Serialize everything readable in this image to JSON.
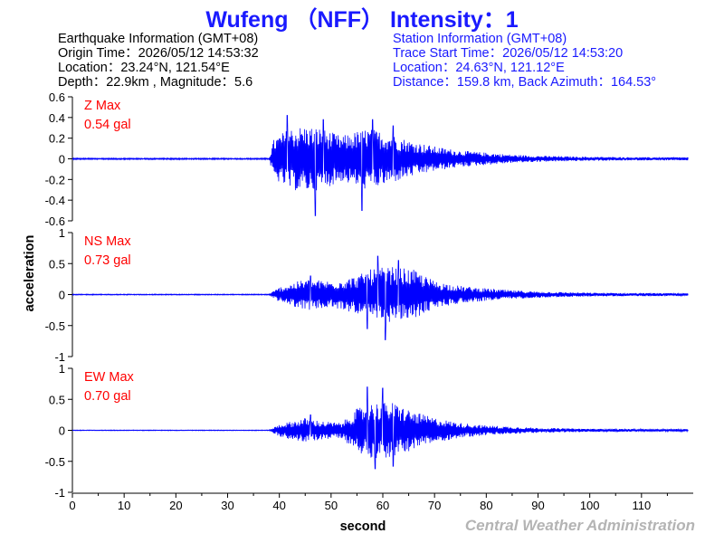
{
  "header": {
    "title": "Wufeng （NFF） Intensity：1"
  },
  "earthquake_info": {
    "heading": "Earthquake Information  (GMT+08)",
    "origin_time": "Origin Time：2026/05/12 14:53:32",
    "location": "Location：23.24°N, 121.54°E",
    "depth_magnitude": "Depth：22.9km , Magnitude：5.6"
  },
  "station_info": {
    "heading": "Station Information  (GMT+08)",
    "trace_start": "Trace Start Time：2026/05/12 14:53:20",
    "location": "Location：24.63°N, 121.12°E",
    "distance": "Distance：159.8 km, Back Azimuth：164.53°"
  },
  "footer": {
    "credit": "Central Weather Administration"
  },
  "colors": {
    "title": "#1a1aff",
    "trace": "#0000ff",
    "max_label": "#ff0000",
    "credit": "#b4b4b4"
  },
  "chart_data": {
    "type": "line",
    "xlabel": "second",
    "ylabel": "acceleration",
    "xlim": [
      0,
      120
    ],
    "xticks": [
      0,
      10,
      20,
      30,
      40,
      50,
      60,
      70,
      80,
      90,
      100,
      110
    ],
    "panels": [
      {
        "component": "Z",
        "max_label": "Z Max",
        "max_value": "0.54 gal",
        "ylim": [
          -0.6,
          0.6
        ],
        "yticks": [
          "-0.6",
          "-0.4",
          "-0.2",
          "0",
          "0.2",
          "0.4",
          "0.6"
        ],
        "envelope": {
          "t": [
            0,
            38,
            39,
            42,
            45,
            48,
            52,
            57,
            61,
            65,
            70,
            75,
            80,
            85,
            90,
            100,
            110,
            119
          ],
          "a": [
            0.007,
            0.007,
            0.2,
            0.3,
            0.32,
            0.3,
            0.22,
            0.3,
            0.25,
            0.18,
            0.12,
            0.08,
            0.06,
            0.04,
            0.03,
            0.02,
            0.015,
            0.015
          ]
        },
        "peaks": [
          [
            41.5,
            0.42
          ],
          [
            47,
            -0.55
          ],
          [
            48.5,
            0.38
          ],
          [
            56,
            -0.5
          ],
          [
            58,
            0.38
          ],
          [
            62,
            0.32
          ]
        ]
      },
      {
        "component": "NS",
        "max_label": "NS Max",
        "max_value": "0.73 gal",
        "ylim": [
          -1,
          1
        ],
        "yticks": [
          "-1",
          "-0.5",
          "0",
          "0.5",
          "1"
        ],
        "envelope": {
          "t": [
            0,
            38,
            40,
            45,
            50,
            55,
            58,
            62,
            66,
            70,
            75,
            80,
            85,
            90,
            100,
            110,
            119
          ],
          "a": [
            0.008,
            0.008,
            0.12,
            0.25,
            0.22,
            0.3,
            0.42,
            0.45,
            0.4,
            0.22,
            0.14,
            0.1,
            0.07,
            0.05,
            0.03,
            0.025,
            0.02
          ]
        },
        "peaks": [
          [
            59,
            0.62
          ],
          [
            60.5,
            -0.73
          ],
          [
            63,
            0.55
          ],
          [
            57,
            -0.55
          ],
          [
            46,
            0.3
          ]
        ]
      },
      {
        "component": "EW",
        "max_label": "EW Max",
        "max_value": "0.70 gal",
        "ylim": [
          -1,
          1
        ],
        "yticks": [
          "-1",
          "-0.5",
          "0",
          "0.5",
          "1"
        ],
        "envelope": {
          "t": [
            0,
            38,
            40,
            45,
            48,
            52,
            55,
            58,
            62,
            66,
            70,
            75,
            80,
            85,
            90,
            100,
            110,
            119
          ],
          "a": [
            0.006,
            0.006,
            0.1,
            0.2,
            0.15,
            0.12,
            0.35,
            0.45,
            0.45,
            0.3,
            0.2,
            0.12,
            0.08,
            0.06,
            0.04,
            0.025,
            0.02,
            0.02
          ]
        },
        "peaks": [
          [
            57,
            0.7
          ],
          [
            58.5,
            -0.62
          ],
          [
            60,
            0.68
          ],
          [
            62,
            -0.58
          ],
          [
            46,
            0.25
          ]
        ]
      }
    ]
  }
}
